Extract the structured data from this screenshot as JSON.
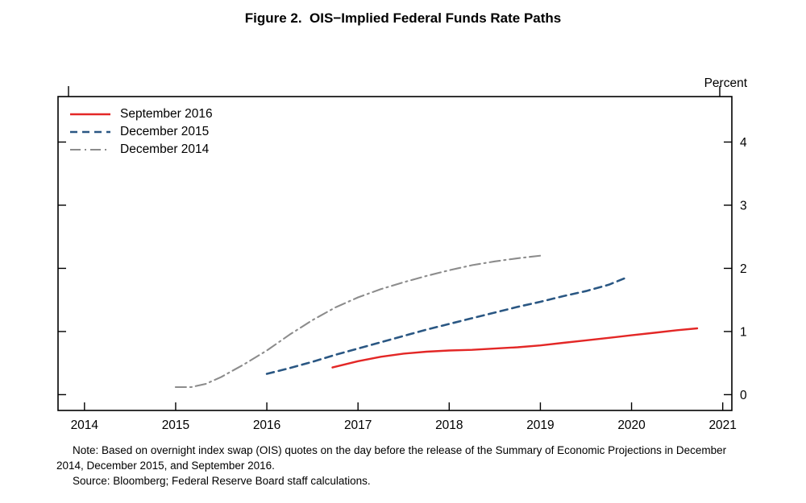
{
  "title": "Figure 2.  OIS−Implied Federal Funds Rate Paths",
  "percent_label": "Percent",
  "note": "Note:  Based on overnight index swap (OIS) quotes on the day before the release of the Summary of Economic Projections in December 2014, December 2015, and September 2016.",
  "source": "Source:  Bloomberg; Federal Reserve Board staff calculations.",
  "chart_data": {
    "type": "line",
    "title": "Figure 2. OIS−Implied Federal Funds Rate Paths",
    "xlabel": "",
    "ylabel": "Percent",
    "xlim": [
      2013.71,
      2021.1
    ],
    "ylim": [
      -0.25,
      4.72
    ],
    "x_ticks": [
      2014,
      2015,
      2016,
      2017,
      2018,
      2019,
      2020,
      2021
    ],
    "y_ticks": [
      0,
      1,
      2,
      3,
      4
    ],
    "grid": false,
    "legend_position": "top-left",
    "frame_color": "#000000",
    "series": [
      {
        "name": "September 2016",
        "color": "#e32726",
        "dash": "solid",
        "x": [
          2016.72,
          2017.0,
          2017.25,
          2017.5,
          2017.75,
          2018.0,
          2018.25,
          2018.5,
          2018.75,
          2019.0,
          2019.25,
          2019.5,
          2019.75,
          2020.0,
          2020.25,
          2020.5,
          2020.72
        ],
        "y": [
          0.43,
          0.53,
          0.6,
          0.65,
          0.68,
          0.7,
          0.71,
          0.73,
          0.75,
          0.78,
          0.82,
          0.86,
          0.9,
          0.94,
          0.98,
          1.02,
          1.05
        ]
      },
      {
        "name": "December 2015",
        "color": "#2a5783",
        "dash": "dashed",
        "x": [
          2016.0,
          2016.25,
          2016.5,
          2016.75,
          2017.0,
          2017.25,
          2017.5,
          2017.75,
          2018.0,
          2018.25,
          2018.5,
          2018.75,
          2019.0,
          2019.25,
          2019.5,
          2019.75,
          2019.92
        ],
        "y": [
          0.33,
          0.42,
          0.52,
          0.63,
          0.73,
          0.83,
          0.93,
          1.03,
          1.12,
          1.21,
          1.3,
          1.39,
          1.47,
          1.56,
          1.64,
          1.74,
          1.84
        ]
      },
      {
        "name": "December 2014",
        "color": "#8c8c8c",
        "dash": "dashdot",
        "x": [
          2015.0,
          2015.17,
          2015.33,
          2015.5,
          2015.75,
          2016.0,
          2016.25,
          2016.5,
          2016.75,
          2017.0,
          2017.25,
          2017.5,
          2017.75,
          2018.0,
          2018.25,
          2018.5,
          2018.75,
          2019.0
        ],
        "y": [
          0.12,
          0.12,
          0.17,
          0.28,
          0.48,
          0.7,
          0.95,
          1.18,
          1.38,
          1.54,
          1.67,
          1.78,
          1.88,
          1.97,
          2.05,
          2.11,
          2.16,
          2.2
        ]
      }
    ]
  }
}
